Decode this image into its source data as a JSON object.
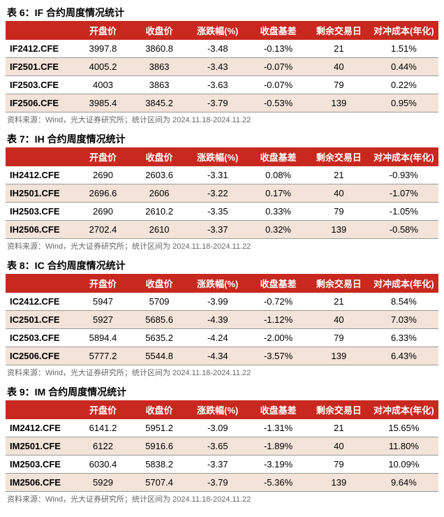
{
  "colors": {
    "header_bg": "#c8281e",
    "header_text": "#ffffff",
    "row_alt_bg": "#f3e3d8",
    "row_bg": "#ffffff",
    "border": "#999999",
    "text": "#000000",
    "source_text": "#666666"
  },
  "columnHeaders": [
    "",
    "开盘价",
    "收盘价",
    "涨跌幅(%)",
    "收盘基差",
    "剩余交易日",
    "对冲成本(年化)"
  ],
  "tables": [
    {
      "title": "表 6：IF 合约周度情况统计",
      "rows": [
        [
          "IF2412.CFE",
          "3997.8",
          "3860.8",
          "-3.48",
          "-0.13%",
          "21",
          "1.51%"
        ],
        [
          "IF2501.CFE",
          "4005.2",
          "3863",
          "-3.43",
          "-0.07%",
          "40",
          "0.44%"
        ],
        [
          "IF2503.CFE",
          "4003",
          "3863",
          "-3.63",
          "-0.07%",
          "79",
          "0.22%"
        ],
        [
          "IF2506.CFE",
          "3985.4",
          "3845.2",
          "-3.79",
          "-0.53%",
          "139",
          "0.95%"
        ]
      ],
      "source": "资料来源：Wind，光大证券研究所；统计区间为 2024.11.18-2024.11.22"
    },
    {
      "title": "表 7：IH 合约周度情况统计",
      "rows": [
        [
          "IH2412.CFE",
          "2690",
          "2603.6",
          "-3.31",
          "0.08%",
          "21",
          "-0.93%"
        ],
        [
          "IH2501.CFE",
          "2696.6",
          "2606",
          "-3.22",
          "0.17%",
          "40",
          "-1.07%"
        ],
        [
          "IH2503.CFE",
          "2690",
          "2610.2",
          "-3.35",
          "0.33%",
          "79",
          "-1.05%"
        ],
        [
          "IH2506.CFE",
          "2702.4",
          "2610",
          "-3.37",
          "0.32%",
          "139",
          "-0.58%"
        ]
      ],
      "source": "资料来源：Wind，光大证券研究所；统计区间为 2024.11.18-2024.11.22"
    },
    {
      "title": "表 8：IC 合约周度情况统计",
      "rows": [
        [
          "IC2412.CFE",
          "5947",
          "5709",
          "-3.99",
          "-0.72%",
          "21",
          "8.54%"
        ],
        [
          "IC2501.CFE",
          "5927",
          "5685.6",
          "-4.39",
          "-1.12%",
          "40",
          "7.03%"
        ],
        [
          "IC2503.CFE",
          "5894.4",
          "5635.2",
          "-4.24",
          "-2.00%",
          "79",
          "6.33%"
        ],
        [
          "IC2506.CFE",
          "5777.2",
          "5544.8",
          "-4.34",
          "-3.57%",
          "139",
          "6.43%"
        ]
      ],
      "source": "资料来源：Wind，光大证券研究所；统计区间为 2024.11.18-2024.11.22"
    },
    {
      "title": "表 9：IM 合约周度情况统计",
      "rows": [
        [
          "IM2412.CFE",
          "6141.2",
          "5951.2",
          "-3.09",
          "-1.31%",
          "21",
          "15.65%"
        ],
        [
          "IM2501.CFE",
          "6122",
          "5916.6",
          "-3.65",
          "-1.89%",
          "40",
          "11.80%"
        ],
        [
          "IM2503.CFE",
          "6030.4",
          "5838.2",
          "-3.37",
          "-3.19%",
          "79",
          "10.09%"
        ],
        [
          "IM2506.CFE",
          "5929",
          "5707.4",
          "-3.79",
          "-5.36%",
          "139",
          "9.64%"
        ]
      ],
      "source": "资料来源：Wind，光大证券研究所；统计区间为 2024.11.18-2024.11.22"
    }
  ]
}
